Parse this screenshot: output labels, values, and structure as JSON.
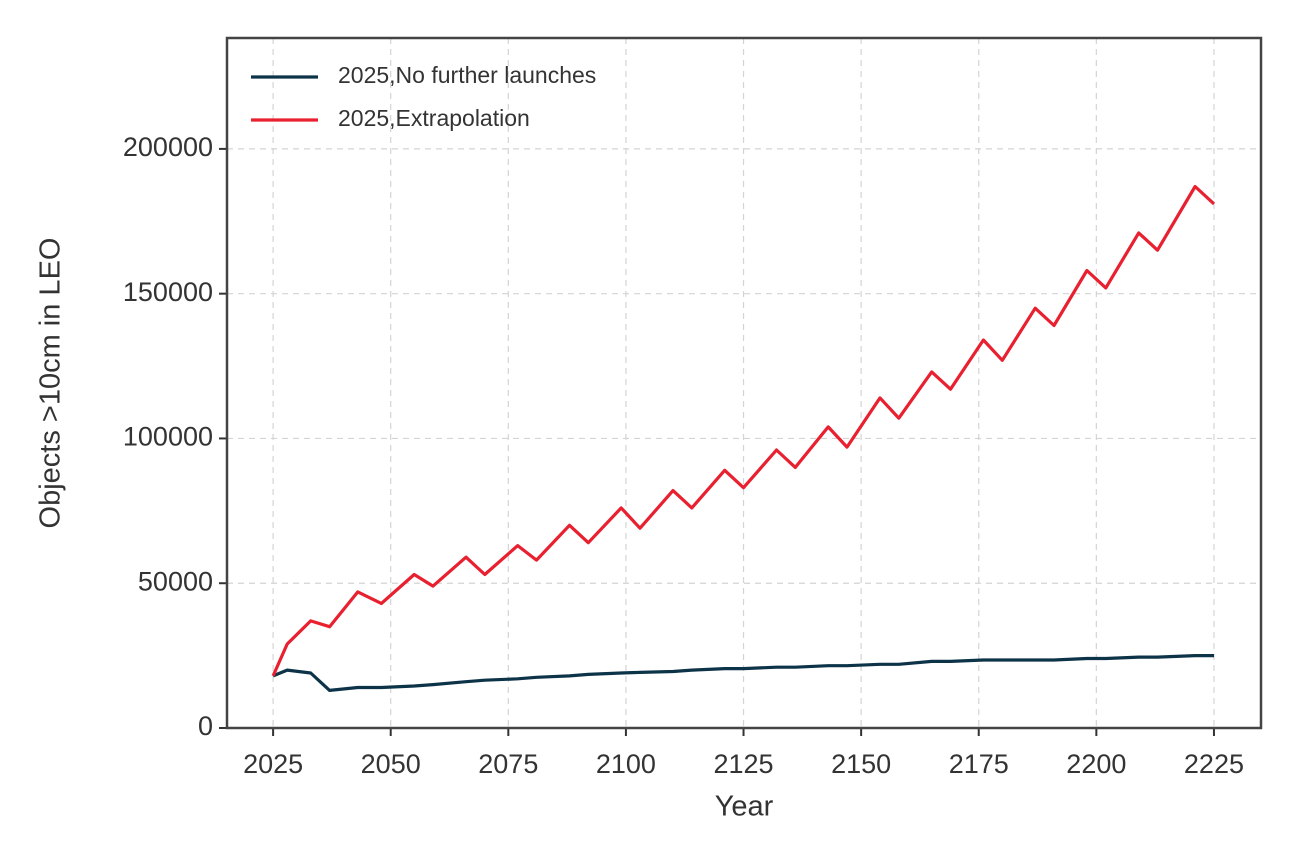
{
  "chart_data": {
    "type": "line",
    "x_label": "Year",
    "y_label": "Objects >10cm in LEO",
    "x": [
      2025,
      2028,
      2033,
      2037,
      2043,
      2048,
      2055,
      2059,
      2066,
      2070,
      2077,
      2081,
      2088,
      2092,
      2099,
      2103,
      2110,
      2114,
      2121,
      2125,
      2132,
      2136,
      2143,
      2147,
      2154,
      2158,
      2165,
      2169,
      2176,
      2180,
      2187,
      2191,
      2198,
      2202,
      2209,
      2213,
      2221,
      2225
    ],
    "series": [
      {
        "name": "2025,No further launches",
        "color": "#0d3349",
        "values": [
          18000,
          20000,
          19000,
          13000,
          14000,
          14000,
          14500,
          15000,
          16000,
          16500,
          17000,
          17500,
          18000,
          18500,
          19000,
          19200,
          19500,
          20000,
          20500,
          20500,
          21000,
          21000,
          21500,
          21500,
          22000,
          22000,
          23000,
          23000,
          23500,
          23500,
          23500,
          23500,
          24000,
          24000,
          24500,
          24500,
          25000,
          25000
        ]
      },
      {
        "name": "2025,Extrapolation",
        "color": "#e8202f",
        "values": [
          18000,
          29000,
          37000,
          35000,
          47000,
          43000,
          53000,
          49000,
          59000,
          53000,
          63000,
          58000,
          70000,
          64000,
          76000,
          69000,
          82000,
          76000,
          89000,
          83000,
          96000,
          90000,
          104000,
          97000,
          114000,
          107000,
          123000,
          117000,
          134000,
          127000,
          145000,
          139000,
          158000,
          152000,
          171000,
          165000,
          187000,
          181000
        ]
      }
    ],
    "xlim": [
      2015.2,
      2235
    ],
    "ylim": [
      0,
      238300
    ],
    "xticks": [
      2025,
      2050,
      2075,
      2100,
      2125,
      2150,
      2175,
      2200,
      2225
    ],
    "yticks": [
      0,
      50000,
      100000,
      150000,
      200000
    ],
    "grid": true,
    "legend": "upper left"
  }
}
